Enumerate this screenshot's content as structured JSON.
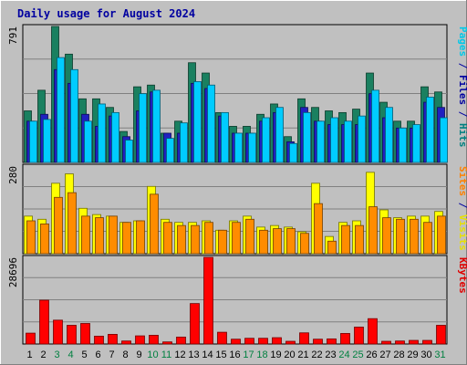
{
  "chart_data": {
    "type": "bar",
    "title": "Daily usage for August 2024",
    "categories": [
      "1",
      "2",
      "3",
      "4",
      "5",
      "6",
      "7",
      "8",
      "9",
      "10",
      "11",
      "12",
      "13",
      "14",
      "15",
      "16",
      "17",
      "18",
      "19",
      "20",
      "21",
      "22",
      "23",
      "24",
      "25",
      "26",
      "27",
      "28",
      "29",
      "30",
      "31"
    ],
    "weekend_days": [
      "3",
      "4",
      "10",
      "11",
      "17",
      "18",
      "24",
      "25",
      "31"
    ],
    "grid": true,
    "panels": [
      {
        "id": "hits",
        "ymax_label": "791",
        "ymax": 791,
        "side_labels": [
          {
            "text": "Pages",
            "color": "#00c8e8"
          },
          {
            "text": " / ",
            "color": "#0000a0"
          },
          {
            "text": "Files",
            "color": "#0000a0"
          },
          {
            "text": " / ",
            "color": "#0000a0"
          },
          {
            "text": "Hits",
            "color": "#008080"
          }
        ],
        "series": [
          {
            "name": "Hits",
            "color": "#1a8060",
            "values": [
              300,
              420,
              791,
              630,
              370,
              370,
              320,
              180,
              440,
              450,
              170,
              240,
              580,
              520,
              290,
              210,
              210,
              280,
              340,
              150,
              370,
              320,
              300,
              290,
              310,
              520,
              350,
              240,
              240,
              440,
              410
            ]
          },
          {
            "name": "Files",
            "color": "#2020c0",
            "values": [
              240,
              280,
              540,
              460,
              280,
              210,
              270,
              150,
              300,
              410,
              170,
              170,
              460,
              430,
              270,
              170,
              170,
              240,
              290,
              120,
              320,
              240,
              220,
              220,
              220,
              400,
              260,
              200,
              200,
              350,
              320
            ]
          },
          {
            "name": "Pages",
            "color": "#00ccff",
            "values": [
              240,
              250,
              610,
              540,
              240,
              340,
              290,
              130,
              400,
              420,
              140,
              230,
              470,
              450,
              290,
              170,
              170,
              260,
              320,
              110,
              290,
              240,
              260,
              240,
              270,
              420,
              320,
              200,
              220,
              380,
              260
            ]
          }
        ]
      },
      {
        "id": "visits",
        "ymax_label": "280",
        "ymax": 280,
        "side_labels": [
          {
            "text": "Sites",
            "color": "#ff8000"
          },
          {
            "text": " / ",
            "color": "#0000a0"
          },
          {
            "text": "Visits",
            "color": "#e8e000"
          }
        ],
        "series": [
          {
            "name": "Visits",
            "color": "#ffff00",
            "values": [
              120,
              110,
              225,
              255,
              145,
              125,
              120,
              100,
              105,
              215,
              110,
              100,
              100,
              105,
              75,
              105,
              120,
              85,
              90,
              85,
              70,
              225,
              55,
              100,
              105,
              260,
              140,
              115,
              120,
              120,
              135
            ]
          },
          {
            "name": "Sites",
            "color": "#ff8c00",
            "values": [
              105,
              95,
              180,
              195,
              120,
              115,
              120,
              100,
              105,
              190,
              100,
              90,
              90,
              100,
              75,
              100,
              110,
              75,
              80,
              80,
              65,
              160,
              40,
              90,
              90,
              150,
              115,
              110,
              110,
              100,
              120
            ]
          }
        ]
      },
      {
        "id": "kbytes",
        "ymax_label": "28696",
        "ymax": 28696,
        "side_labels": [
          {
            "text": "KBytes",
            "color": "#e00000"
          }
        ],
        "series": [
          {
            "name": "KBytes",
            "color": "#ff0000",
            "values": [
              3600,
              14500,
              7900,
              6200,
              6800,
              2600,
              3200,
              1000,
              2700,
              2900,
              700,
              2300,
              13400,
              28696,
              3900,
              1600,
              1900,
              1900,
              2100,
              900,
              3700,
              1600,
              1700,
              3500,
              5600,
              8400,
              900,
              1000,
              1200,
              1200,
              6200
            ]
          }
        ]
      }
    ]
  }
}
